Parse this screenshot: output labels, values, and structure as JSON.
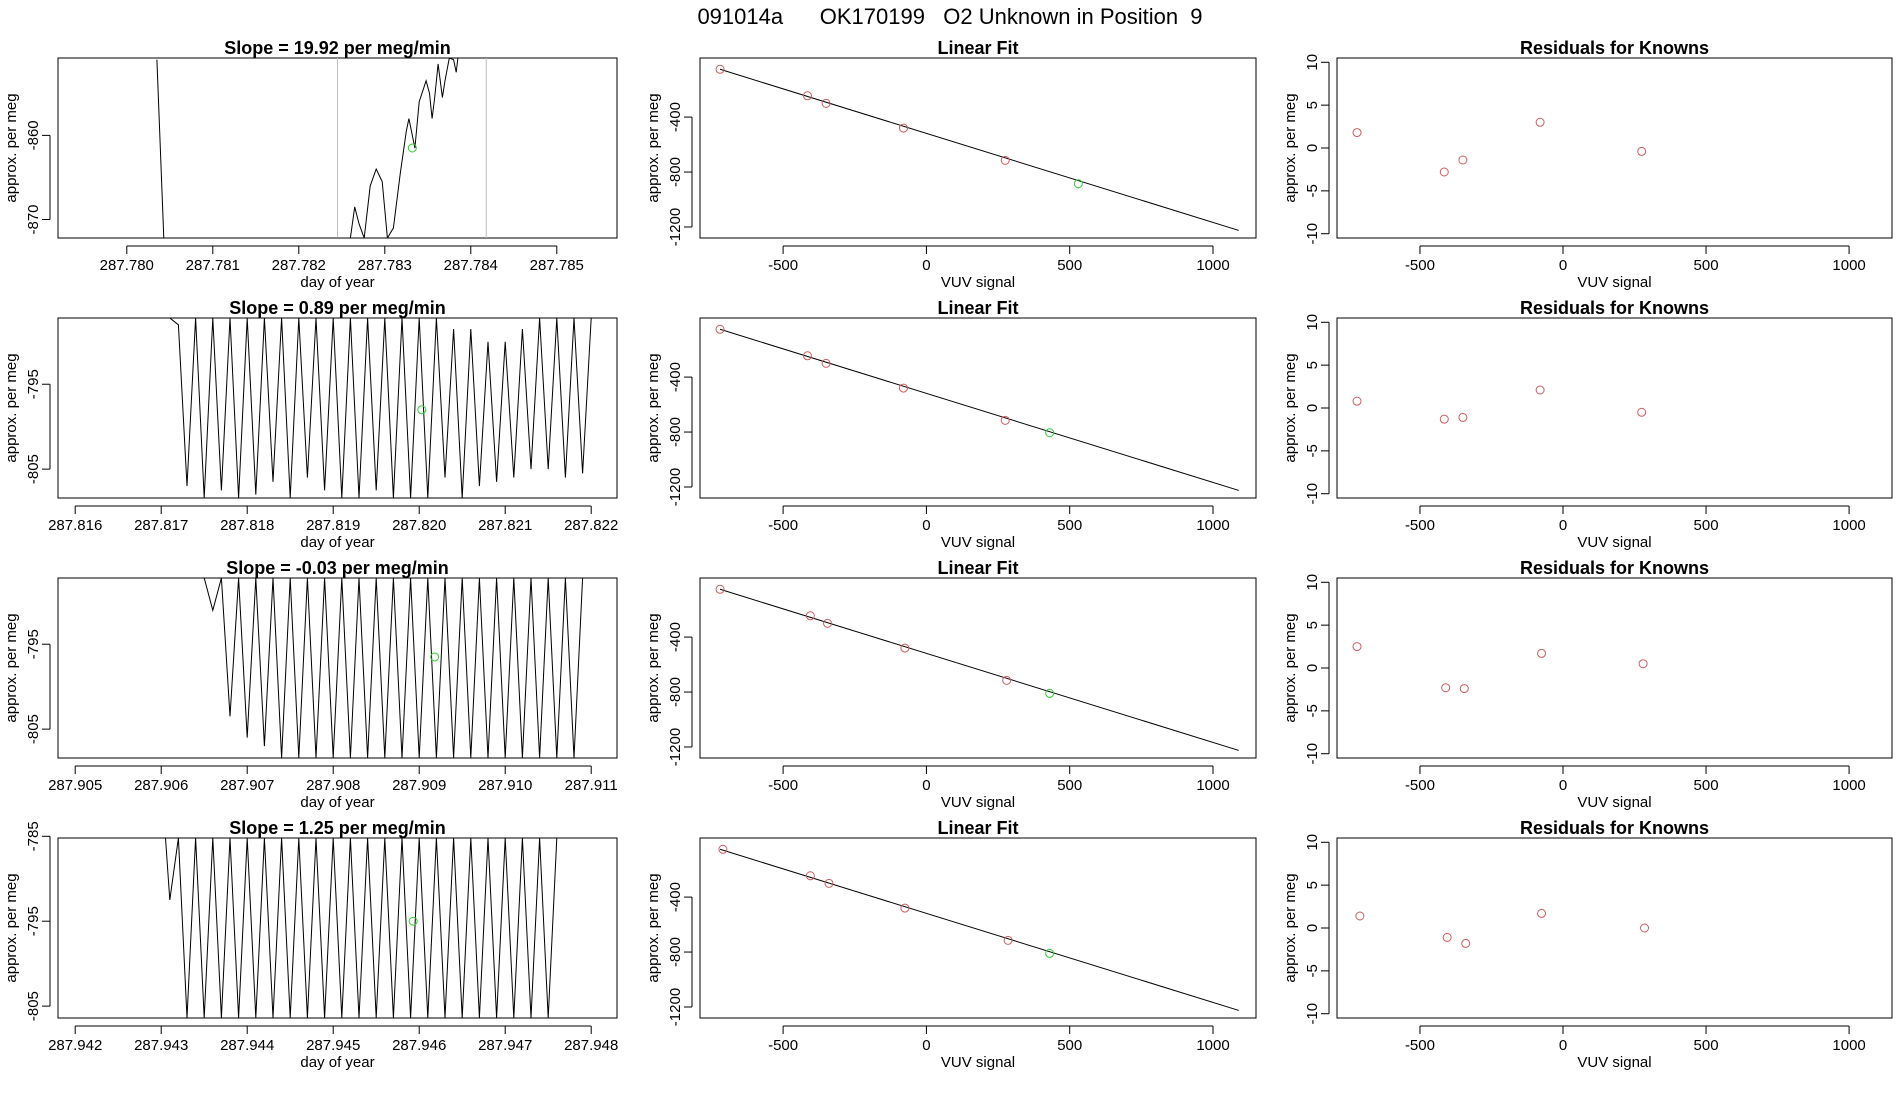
{
  "title": "091014a      OK170199   O2 Unknown in Position  9",
  "colors": {
    "known": "#cd5c5c",
    "unknown": "#32cd32",
    "line": "#000000",
    "marker": "#bebebe"
  },
  "chart_data": [
    {
      "type": "line",
      "panel": "signal",
      "row": 0,
      "title": "Slope =  19.92  per meg/min",
      "xlabel": "day of year",
      "ylabel": "approx. per meg",
      "xlim": [
        287.7792,
        287.7857
      ],
      "ylim": [
        -872.2,
        -850.8
      ],
      "xticks": [
        "287.780",
        "287.781",
        "287.782",
        "287.783",
        "287.784",
        "287.785"
      ],
      "yticks": [
        "-870",
        "-860"
      ],
      "markers": [
        287.78245,
        287.78418
      ],
      "unknown_point": {
        "x": 287.78332,
        "y": -861.5
      },
      "series": [
        {
          "x": [
            287.78035,
            287.78043
          ],
          "y": [
            -851.0,
            -872.2
          ]
        },
        {
          "x": [
            287.78245,
            287.7826,
            287.78265,
            287.7827,
            287.78276,
            287.78283,
            287.7829,
            287.78297,
            287.78303,
            287.7831,
            287.78318,
            287.78325,
            287.78328,
            287.78335,
            287.7834,
            287.78348,
            287.78352,
            287.78355,
            287.78358,
            287.78362,
            287.78367,
            287.7837,
            287.78375,
            287.7838,
            287.78383,
            287.78385
          ],
          "y": [
            -872.2,
            -872.2,
            -868.5,
            -870.5,
            -872.2,
            -866.0,
            -864.0,
            -865.5,
            -872.2,
            -871.0,
            -864.5,
            -859.5,
            -858.0,
            -861.5,
            -856.0,
            -853.5,
            -855.0,
            -858.0,
            -855.5,
            -851.5,
            -855.5,
            -853.5,
            -850.8,
            -851.0,
            -852.5,
            -850.8
          ]
        }
      ]
    },
    {
      "type": "scatter",
      "panel": "fit",
      "row": 0,
      "title": "Linear Fit",
      "xlabel": "VUV signal",
      "ylabel": "approx. per meg",
      "xlim": [
        -790,
        1150
      ],
      "ylim": [
        -1280,
        30
      ],
      "xticks": [
        "-500",
        "0",
        "500",
        "1000"
      ],
      "yticks": [
        "-1200",
        "-800",
        "-400"
      ],
      "knowns": {
        "x": [
          -720,
          -415,
          -350,
          -80,
          275
        ],
        "y": [
          -52,
          -245,
          -300,
          -480,
          -715
        ]
      },
      "unknown": {
        "x": 530,
        "y": -885
      },
      "fit_line": {
        "x": [
          -720,
          1090
        ],
        "y": [
          -52,
          -1225
        ]
      }
    },
    {
      "type": "scatter",
      "panel": "residuals",
      "row": 0,
      "title": "Residuals for Knowns",
      "xlabel": "VUV signal",
      "ylabel": "approx. per meg",
      "xlim": [
        -790,
        1150
      ],
      "ylim": [
        -10.5,
        10.5
      ],
      "xticks": [
        "-500",
        "0",
        "500",
        "1000"
      ],
      "yticks": [
        "-10",
        "-5",
        "0",
        "5",
        "10"
      ],
      "knowns": {
        "x": [
          -720,
          -415,
          -350,
          -80,
          275
        ],
        "y": [
          1.8,
          -2.8,
          -1.4,
          3.0,
          -0.4
        ]
      }
    },
    {
      "type": "line",
      "panel": "signal",
      "row": 1,
      "title": "Slope =  0.89  per meg/min",
      "xlabel": "day of year",
      "ylabel": "approx. per meg",
      "xlim": [
        287.8158,
        287.8223
      ],
      "ylim": [
        -808.4,
        -787.2
      ],
      "xticks": [
        "287.816",
        "287.817",
        "287.818",
        "287.819",
        "287.820",
        "287.821",
        "287.822"
      ],
      "yticks": [
        "-805",
        "-795"
      ],
      "unknown_point": {
        "x": 287.82003,
        "y": -798.0
      },
      "series": [
        {
          "x": [
            287.8171,
            287.8172,
            287.8173,
            287.8174,
            287.8175,
            287.8176,
            287.8177,
            287.8178,
            287.8179,
            287.818,
            287.8181,
            287.8182,
            287.8183,
            287.8184,
            287.8185,
            287.8186,
            287.8187,
            287.8188,
            287.8189,
            287.819,
            287.8191,
            287.8192,
            287.8193,
            287.8194,
            287.8195,
            287.8196,
            287.8197,
            287.8198,
            287.8199,
            287.82,
            287.8201,
            287.8202,
            287.8203,
            287.8204,
            287.8205,
            287.8206,
            287.8207,
            287.8208,
            287.8209,
            287.821,
            287.8211,
            287.8212,
            287.8213,
            287.8214,
            287.8215,
            287.8216,
            287.8217,
            287.8218,
            287.8219,
            287.822
          ],
          "y": [
            -787.2,
            -788.0,
            -807.0,
            -787.2,
            -808.4,
            -787.2,
            -807.5,
            -787.2,
            -808.4,
            -787.2,
            -808.0,
            -787.2,
            -806.5,
            -787.2,
            -808.4,
            -787.2,
            -806.0,
            -787.2,
            -807.5,
            -787.2,
            -808.4,
            -787.2,
            -808.4,
            -787.2,
            -807.5,
            -787.2,
            -808.4,
            -787.2,
            -808.4,
            -787.2,
            -808.4,
            -787.2,
            -806.0,
            -788.5,
            -808.4,
            -788.5,
            -807.0,
            -790.0,
            -806.5,
            -790.0,
            -806.0,
            -788.5,
            -805.0,
            -787.2,
            -805.0,
            -787.2,
            -806.0,
            -787.2,
            -805.5,
            -787.2
          ]
        }
      ]
    },
    {
      "type": "scatter",
      "panel": "fit",
      "row": 1,
      "title": "Linear Fit",
      "xlabel": "VUV signal",
      "ylabel": "approx. per meg",
      "xlim": [
        -790,
        1150
      ],
      "ylim": [
        -1280,
        30
      ],
      "xticks": [
        "-500",
        "0",
        "500",
        "1000"
      ],
      "yticks": [
        "-1200",
        "-800",
        "-400"
      ],
      "knowns": {
        "x": [
          -720,
          -415,
          -350,
          -80,
          275
        ],
        "y": [
          -52,
          -245,
          -300,
          -480,
          -715
        ]
      },
      "unknown": {
        "x": 430,
        "y": -805
      },
      "fit_line": {
        "x": [
          -720,
          1090
        ],
        "y": [
          -52,
          -1225
        ]
      }
    },
    {
      "type": "scatter",
      "panel": "residuals",
      "row": 1,
      "title": "Residuals for Knowns",
      "xlabel": "VUV signal",
      "ylabel": "approx. per meg",
      "xlim": [
        -790,
        1150
      ],
      "ylim": [
        -10.5,
        10.5
      ],
      "xticks": [
        "-500",
        "0",
        "500",
        "1000"
      ],
      "yticks": [
        "-10",
        "-5",
        "0",
        "5",
        "10"
      ],
      "knowns": {
        "x": [
          -720,
          -415,
          -350,
          -80,
          275
        ],
        "y": [
          0.8,
          -1.3,
          -1.1,
          2.1,
          -0.5
        ]
      }
    },
    {
      "type": "line",
      "panel": "signal",
      "row": 2,
      "title": "Slope =  -0.03  per meg/min",
      "xlabel": "day of year",
      "ylabel": "approx. per meg",
      "xlim": [
        287.9048,
        287.9113
      ],
      "ylim": [
        -808.4,
        -787.2
      ],
      "xticks": [
        "287.905",
        "287.906",
        "287.907",
        "287.908",
        "287.909",
        "287.910",
        "287.911"
      ],
      "yticks": [
        "-805",
        "-795"
      ],
      "unknown_point": {
        "x": 287.90918,
        "y": -796.5
      },
      "series": [
        {
          "x": [
            287.9065,
            287.9066,
            287.9067,
            287.9068,
            287.9069,
            287.907,
            287.9071,
            287.9072,
            287.9073,
            287.9074,
            287.9075,
            287.9076,
            287.9077,
            287.9078,
            287.9079,
            287.908,
            287.9081,
            287.9082,
            287.9083,
            287.9084,
            287.9085,
            287.9086,
            287.9087,
            287.9088,
            287.9089,
            287.909,
            287.9091,
            287.9092,
            287.9093,
            287.9094,
            287.9095,
            287.9096,
            287.9097,
            287.9098,
            287.9099,
            287.91,
            287.9101,
            287.9102,
            287.9103,
            287.9104,
            287.9105,
            287.9106,
            287.9107,
            287.9108,
            287.9109
          ],
          "y": [
            -787.2,
            -791.0,
            -787.2,
            -803.5,
            -787.2,
            -806.0,
            -787.2,
            -807.0,
            -787.2,
            -808.4,
            -787.2,
            -808.4,
            -787.2,
            -808.4,
            -787.2,
            -808.4,
            -787.2,
            -808.4,
            -787.2,
            -808.4,
            -787.2,
            -808.4,
            -787.2,
            -808.4,
            -787.2,
            -808.4,
            -787.2,
            -808.4,
            -787.2,
            -808.4,
            -787.2,
            -808.4,
            -787.2,
            -808.4,
            -787.2,
            -808.4,
            -787.2,
            -808.4,
            -787.2,
            -808.4,
            -787.2,
            -808.4,
            -787.2,
            -808.4,
            -787.2
          ]
        }
      ]
    },
    {
      "type": "scatter",
      "panel": "fit",
      "row": 2,
      "title": "Linear Fit",
      "xlabel": "VUV signal",
      "ylabel": "approx. per meg",
      "xlim": [
        -790,
        1150
      ],
      "ylim": [
        -1280,
        30
      ],
      "xticks": [
        "-500",
        "0",
        "500",
        "1000"
      ],
      "yticks": [
        "-1200",
        "-800",
        "-400"
      ],
      "knowns": {
        "x": [
          -720,
          -405,
          -345,
          -75,
          280
        ],
        "y": [
          -52,
          -245,
          -300,
          -480,
          -715
        ]
      },
      "unknown": {
        "x": 430,
        "y": -810
      },
      "fit_line": {
        "x": [
          -720,
          1090
        ],
        "y": [
          -52,
          -1225
        ]
      }
    },
    {
      "type": "scatter",
      "panel": "residuals",
      "row": 2,
      "title": "Residuals for Knowns",
      "xlabel": "VUV signal",
      "ylabel": "approx. per meg",
      "xlim": [
        -790,
        1150
      ],
      "ylim": [
        -10.5,
        10.5
      ],
      "xticks": [
        "-500",
        "0",
        "500",
        "1000"
      ],
      "yticks": [
        "-10",
        "-5",
        "0",
        "5",
        "10"
      ],
      "knowns": {
        "x": [
          -720,
          -410,
          -345,
          -75,
          280
        ],
        "y": [
          2.5,
          -2.3,
          -2.4,
          1.7,
          0.5
        ]
      }
    },
    {
      "type": "line",
      "panel": "signal",
      "row": 3,
      "title": "Slope =  1.25  per meg/min",
      "xlabel": "day of year",
      "ylabel": "approx. per meg",
      "xlim": [
        287.9418,
        287.9483
      ],
      "ylim": [
        -806.4,
        -785.2
      ],
      "xticks": [
        "287.942",
        "287.943",
        "287.944",
        "287.945",
        "287.946",
        "287.947",
        "287.948"
      ],
      "yticks": [
        "-805",
        "-795",
        "-785"
      ],
      "unknown_point": {
        "x": 287.94593,
        "y": -795.0
      },
      "series": [
        {
          "x": [
            287.94305,
            287.9431,
            287.9432,
            287.9433,
            287.9434,
            287.9435,
            287.9436,
            287.9437,
            287.9438,
            287.9439,
            287.944,
            287.9441,
            287.9442,
            287.9443,
            287.9444,
            287.9445,
            287.9446,
            287.9447,
            287.9448,
            287.9449,
            287.945,
            287.9451,
            287.9452,
            287.9453,
            287.9454,
            287.9455,
            287.9456,
            287.9457,
            287.9458,
            287.9459,
            287.946,
            287.9461,
            287.9462,
            287.9463,
            287.9464,
            287.9465,
            287.9466,
            287.9467,
            287.9468,
            287.9469,
            287.947,
            287.9471,
            287.9472,
            287.9473,
            287.9474,
            287.9475,
            287.9476
          ],
          "y": [
            -785.2,
            -792.5,
            -785.2,
            -806.4,
            -785.2,
            -806.4,
            -785.2,
            -806.4,
            -785.2,
            -806.4,
            -785.2,
            -806.4,
            -785.2,
            -806.4,
            -785.2,
            -806.4,
            -785.2,
            -806.4,
            -785.2,
            -806.4,
            -785.2,
            -806.4,
            -785.2,
            -806.4,
            -785.2,
            -806.4,
            -785.2,
            -806.4,
            -785.2,
            -806.4,
            -785.2,
            -806.4,
            -785.2,
            -806.4,
            -785.2,
            -806.4,
            -785.2,
            -806.4,
            -785.2,
            -806.4,
            -785.2,
            -806.4,
            -785.2,
            -806.4,
            -785.2,
            -806.4,
            -785.2
          ]
        }
      ]
    },
    {
      "type": "scatter",
      "panel": "fit",
      "row": 3,
      "title": "Linear Fit",
      "xlabel": "VUV signal",
      "ylabel": "approx. per meg",
      "xlim": [
        -790,
        1150
      ],
      "ylim": [
        -1280,
        30
      ],
      "xticks": [
        "-500",
        "0",
        "500",
        "1000"
      ],
      "yticks": [
        "-1200",
        "-800",
        "-400"
      ],
      "knowns": {
        "x": [
          -710,
          -405,
          -340,
          -75,
          285
        ],
        "y": [
          -52,
          -245,
          -300,
          -480,
          -715
        ]
      },
      "unknown": {
        "x": 430,
        "y": -810
      },
      "fit_line": {
        "x": [
          -720,
          1090
        ],
        "y": [
          -52,
          -1225
        ]
      }
    },
    {
      "type": "scatter",
      "panel": "residuals",
      "row": 3,
      "title": "Residuals for Knowns",
      "xlabel": "VUV signal",
      "ylabel": "approx. per meg",
      "xlim": [
        -790,
        1150
      ],
      "ylim": [
        -10.5,
        10.5
      ],
      "xticks": [
        "-500",
        "0",
        "500",
        "1000"
      ],
      "yticks": [
        "-10",
        "-5",
        "0",
        "5",
        "10"
      ],
      "knowns": {
        "x": [
          -710,
          -405,
          -340,
          -75,
          285
        ],
        "y": [
          1.4,
          -1.1,
          -1.8,
          1.7,
          0.0
        ]
      }
    }
  ]
}
